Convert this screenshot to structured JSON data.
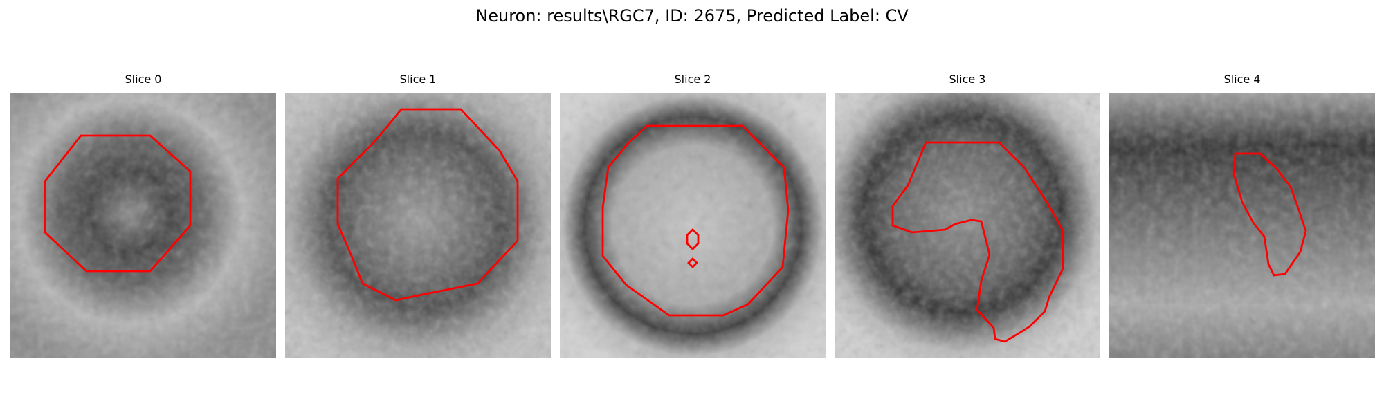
{
  "figure": {
    "title": "Neuron: results\\RGC7, ID: 2675, Predicted Label: CV"
  },
  "slices": [
    {
      "title": "Slice 0"
    },
    {
      "title": "Slice 1"
    },
    {
      "title": "Slice 2"
    },
    {
      "title": "Slice 3"
    },
    {
      "title": "Slice 4"
    }
  ],
  "colors": {
    "contour": "#ff0000",
    "background": "#ffffff"
  }
}
